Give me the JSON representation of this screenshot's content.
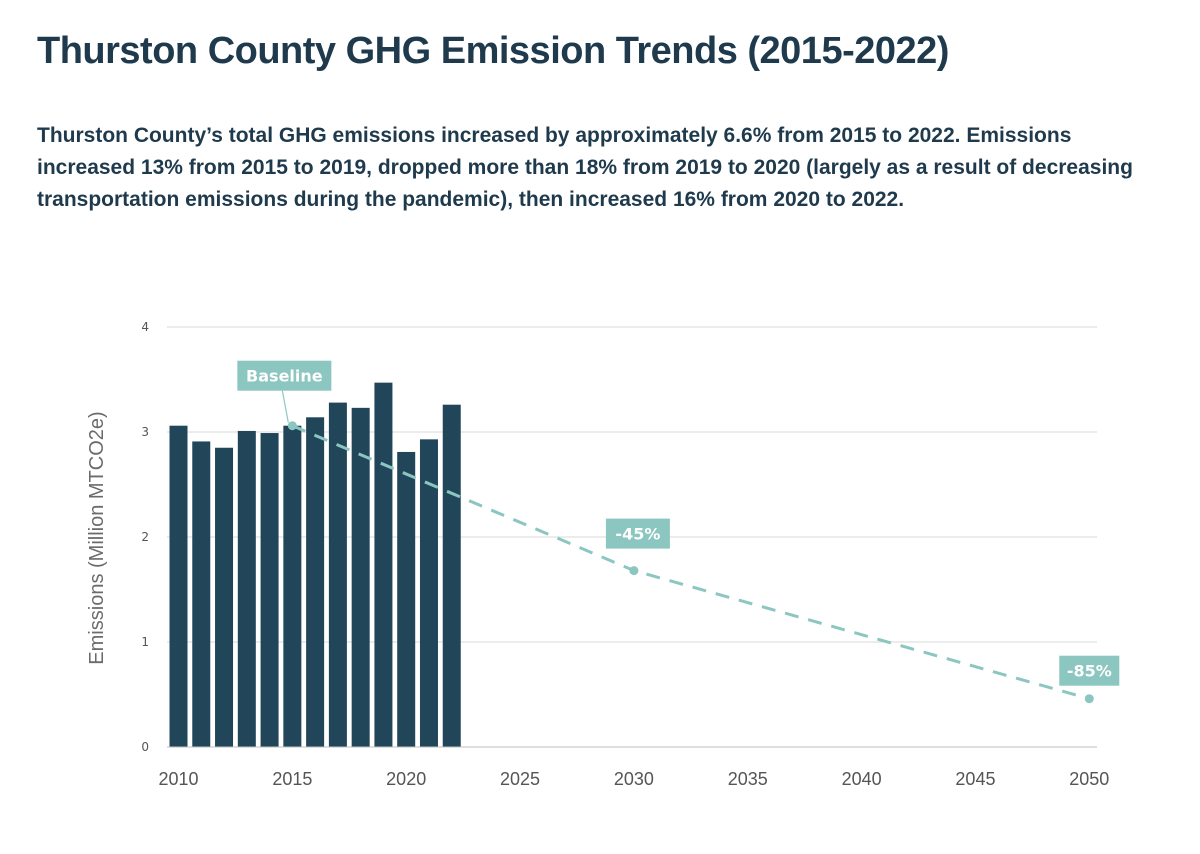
{
  "title": "Thurston County GHG Emission Trends (2015-2022)",
  "subtitle": "Thurston County’s total GHG emissions increased by approximately 6.6% from 2015 to 2022. Emissions increased 13% from 2015 to 2019, dropped more than 18% from 2019 to 2020 (largely as a result of decreasing transportation emissions during the pandemic), then increased 16% from 2020 to 2022.",
  "colors": {
    "bar": "#214559",
    "target": "#8cc6c1",
    "grid": "#d9d9d9",
    "text": "#1f3a4d"
  },
  "chart_data": {
    "type": "bar",
    "ylabel": "Emissions (Million MTCO2e)",
    "ylim": [
      0,
      4
    ],
    "yticks": [
      "0",
      "1",
      "2",
      "3",
      "4"
    ],
    "xlim": [
      2010,
      2050
    ],
    "xticks": [
      "2010",
      "2015",
      "2020",
      "2025",
      "2030",
      "2035",
      "2040",
      "2045",
      "2050"
    ],
    "grid": true,
    "series": [
      {
        "type": "bar",
        "x": [
          2010,
          2011,
          2012,
          2013,
          2014,
          2015,
          2016,
          2017,
          2018,
          2019,
          2020,
          2021,
          2022
        ],
        "values": [
          3.06,
          2.91,
          2.85,
          3.01,
          2.99,
          3.06,
          3.14,
          3.28,
          3.23,
          3.47,
          2.81,
          2.93,
          3.26
        ]
      },
      {
        "type": "line",
        "style": "dashed",
        "x": [
          2015,
          2030,
          2050
        ],
        "values": [
          3.06,
          1.68,
          0.46
        ]
      }
    ],
    "annotations": [
      {
        "text": "Baseline",
        "x": 2015,
        "y": 3.06
      },
      {
        "text": "-45%",
        "x": 2030,
        "y": 1.68
      },
      {
        "text": "-85%",
        "x": 2050,
        "y": 0.46
      }
    ]
  }
}
